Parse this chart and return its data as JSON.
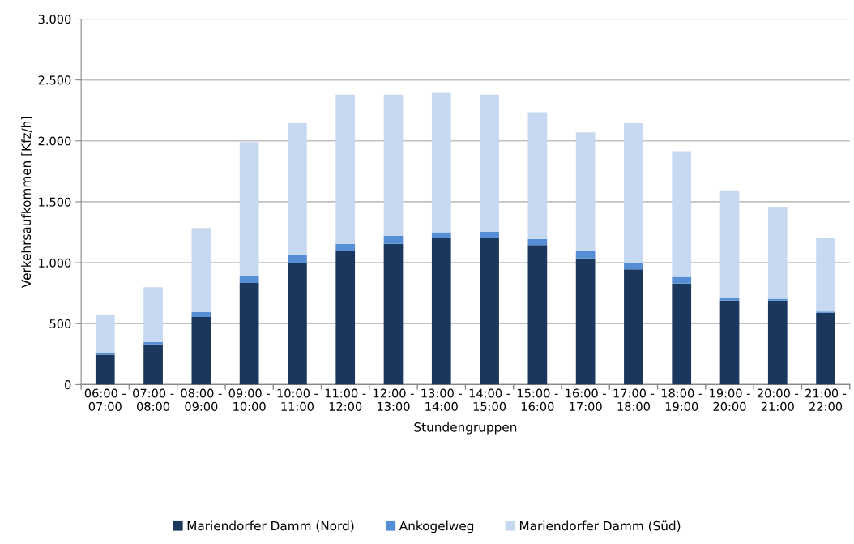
{
  "chart_data": {
    "type": "bar",
    "stacked": true,
    "xlabel": "Stundengruppen",
    "ylabel": "Verkehrsaufkommen [Kfz/h]",
    "categories": [
      "06:00 -\n07:00",
      "07:00 -\n08:00",
      "08:00 -\n09:00",
      "09:00 -\n10:00",
      "10:00 -\n11:00",
      "11:00 -\n12:00",
      "12:00 -\n13:00",
      "13:00 -\n14:00",
      "14:00 -\n15:00",
      "15:00 -\n16:00",
      "16:00 -\n17:00",
      "17:00 -\n18:00",
      "18:00 -\n19:00",
      "19:00 -\n20:00",
      "20:00 -\n21:00",
      "21:00 -\n22:00"
    ],
    "series": [
      {
        "name": "Mariendorfer Damm (Nord)",
        "color": "#1a375e",
        "values": [
          245,
          330,
          555,
          835,
          995,
          1095,
          1155,
          1200,
          1200,
          1145,
          1035,
          945,
          830,
          690,
          690,
          590
        ]
      },
      {
        "name": "Ankogelweg",
        "color": "#558ed5",
        "values": [
          10,
          20,
          40,
          60,
          65,
          60,
          65,
          50,
          55,
          50,
          60,
          55,
          55,
          25,
          15,
          10
        ]
      },
      {
        "name": "Mariendorfer Damm (Süd)",
        "color": "#c6d9f1",
        "values": [
          315,
          450,
          690,
          1095,
          1085,
          1225,
          1160,
          1145,
          1125,
          1040,
          975,
          1145,
          1030,
          880,
          755,
          600
        ]
      }
    ],
    "ylim": [
      0,
      3000
    ],
    "yticks": [
      0,
      {
        "value": 500,
        "label": "500"
      },
      {
        "value": 1000,
        "label": "1.000"
      },
      {
        "value": 1500,
        "label": "1.500"
      },
      {
        "value": 2000,
        "label": "2.000"
      },
      {
        "value": 2500,
        "label": "2.500"
      },
      {
        "value": 3000,
        "label": "3.000"
      }
    ],
    "grid": "y",
    "legend": "bottom"
  }
}
